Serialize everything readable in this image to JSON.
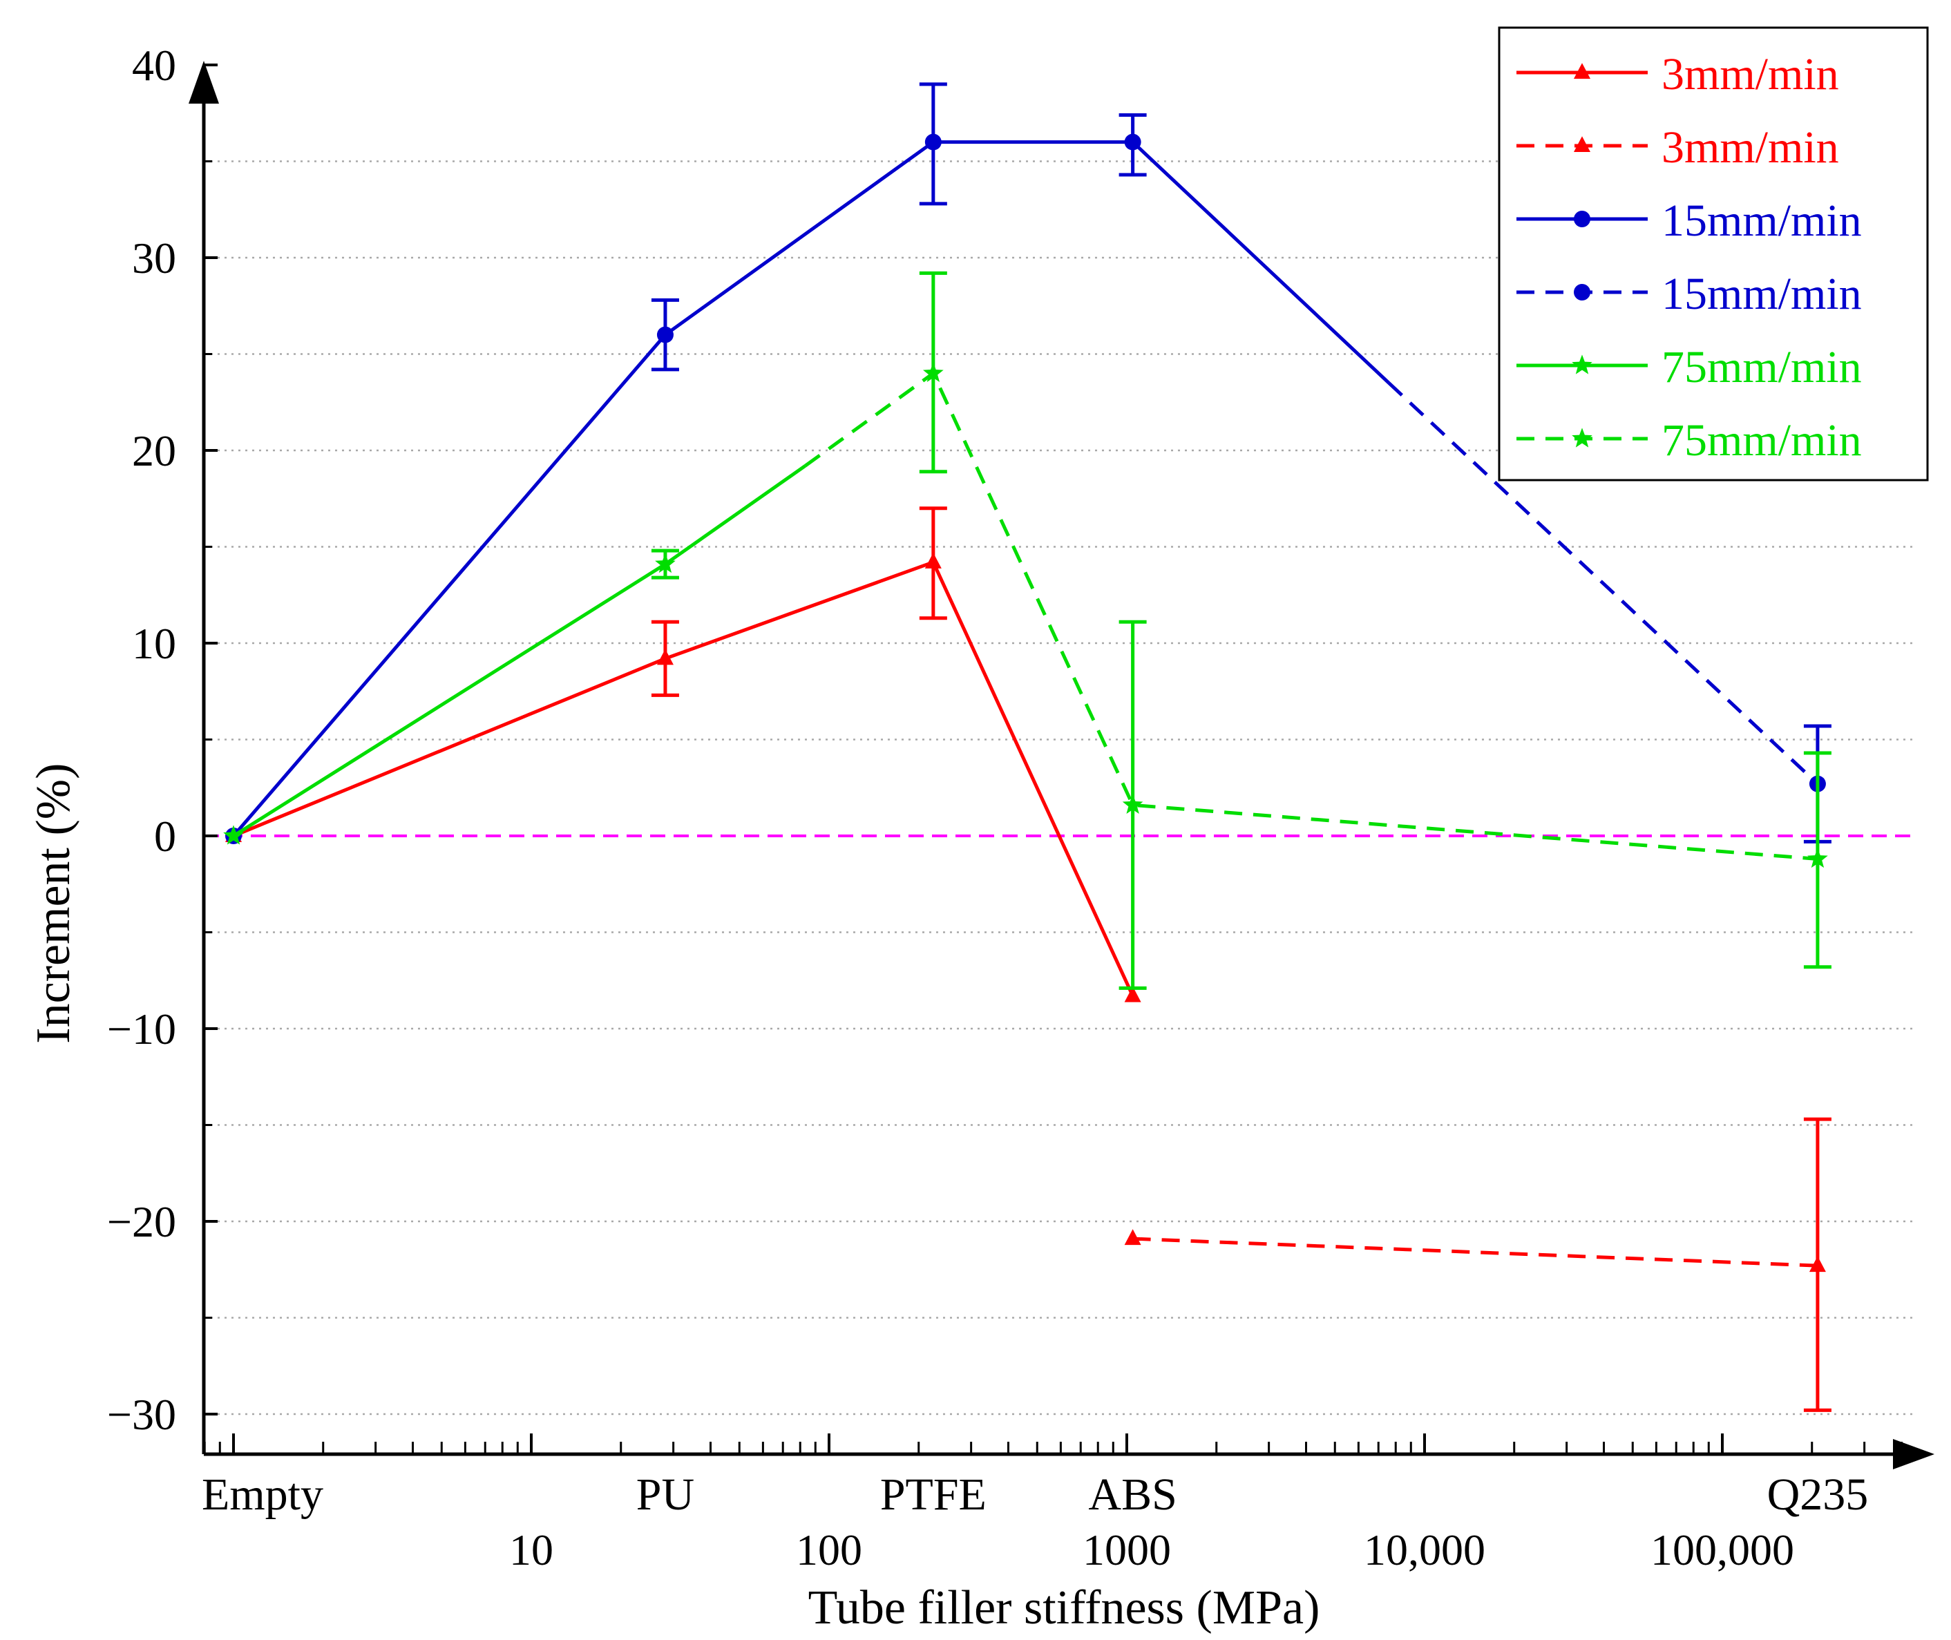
{
  "chart_data": {
    "type": "line",
    "xscale": "log",
    "xlabel": "Tube filler stiffness (MPa)",
    "ylabel": "Increment (%)",
    "ylim": [
      -33,
      40
    ],
    "xlim_log10": [
      -0.1,
      5.65
    ],
    "y_ticks": [
      -30,
      -20,
      -10,
      0,
      10,
      20,
      30,
      40
    ],
    "y_tick_labels": [
      "−30",
      "−20",
      "−10",
      "0",
      "10",
      "20",
      "30",
      "40"
    ],
    "x_decade_ticks": [
      {
        "label": "10",
        "log": 1
      },
      {
        "label": "100",
        "log": 2
      },
      {
        "label": "1000",
        "log": 3
      },
      {
        "label": "10,000",
        "log": 4
      },
      {
        "label": "100,000",
        "log": 5
      }
    ],
    "categories": [
      {
        "name": "Empty",
        "log": 0
      },
      {
        "name": "PU",
        "log": 1.45
      },
      {
        "name": "PTFE",
        "log": 2.35
      },
      {
        "name": "ABS",
        "log": 3.02
      },
      {
        "name": "Q235",
        "log": 5.32
      }
    ],
    "reference_line": {
      "y": 0,
      "color": "#ff00ff"
    },
    "series": [
      {
        "name": "3mm/min",
        "style": "solid",
        "marker": "triangle",
        "color": "#ff0000",
        "points": [
          {
            "x": "Empty",
            "y": 0
          },
          {
            "x": "PU",
            "y": 9.2,
            "err_lo": 7.3,
            "err_hi": 11.1
          },
          {
            "x": "PTFE",
            "y": 14.2,
            "err_lo": 11.3,
            "err_hi": 17.0
          },
          {
            "x": "ABS",
            "y": -8.3
          }
        ]
      },
      {
        "name": "3mm/min",
        "style": "dashed",
        "marker": "triangle",
        "color": "#ff0000",
        "points": [
          {
            "x": "ABS",
            "y": -20.9
          },
          {
            "x": "Q235",
            "y": -22.3,
            "err_lo": -29.8,
            "err_hi": -14.7
          }
        ]
      },
      {
        "name": "15mm/min",
        "style": "solid",
        "marker": "circle",
        "color": "#0000cc",
        "points": [
          {
            "x": "Empty",
            "y": 0
          },
          {
            "x": "PU",
            "y": 26.0,
            "err_lo": 24.2,
            "err_hi": 27.8
          },
          {
            "x": "PTFE",
            "y": 36.0,
            "err_lo": 32.8,
            "err_hi": 39.0
          },
          {
            "x": "ABS",
            "y": 36.0,
            "err_lo": 34.3,
            "err_hi": 37.4
          },
          {
            "x": "split",
            "log": 3.88,
            "y": 23.5
          }
        ]
      },
      {
        "name": "15mm/min",
        "style": "dashed",
        "marker": "circle",
        "color": "#0000cc",
        "points": [
          {
            "x": "split",
            "log": 3.88,
            "y": 23.5
          },
          {
            "x": "Q235",
            "y": 2.7,
            "err_lo": -0.3,
            "err_hi": 5.7
          }
        ]
      },
      {
        "name": "75mm/min",
        "style": "solid",
        "marker": "star",
        "color": "#00dd00",
        "points": [
          {
            "x": "Empty",
            "y": 0
          },
          {
            "x": "PU",
            "y": 14.1,
            "err_lo": 13.4,
            "err_hi": 14.8
          },
          {
            "x": "split",
            "log": 1.92,
            "y": 19.2
          }
        ]
      },
      {
        "name": "75mm/min",
        "style": "dashed",
        "marker": "star",
        "color": "#00dd00",
        "points": [
          {
            "x": "split",
            "log": 1.92,
            "y": 19.2
          },
          {
            "x": "PTFE",
            "y": 24.0,
            "err_lo": 18.9,
            "err_hi": 29.2
          },
          {
            "x": "ABS",
            "y": 1.6,
            "err_lo": -7.9,
            "err_hi": 11.1
          },
          {
            "x": "Q235",
            "y": -1.2,
            "err_lo": -6.8,
            "err_hi": 4.3
          }
        ]
      }
    ],
    "legend": {
      "position": "top-right",
      "entries": [
        {
          "label": "3mm/min",
          "color": "#ff0000",
          "style": "solid",
          "marker": "triangle"
        },
        {
          "label": "3mm/min",
          "color": "#ff0000",
          "style": "dashed",
          "marker": "triangle"
        },
        {
          "label": "15mm/min",
          "color": "#0000cc",
          "style": "solid",
          "marker": "circle"
        },
        {
          "label": "15mm/min",
          "color": "#0000cc",
          "style": "dashed",
          "marker": "circle"
        },
        {
          "label": "75mm/min",
          "color": "#00dd00",
          "style": "solid",
          "marker": "star"
        },
        {
          "label": "75mm/min",
          "color": "#00dd00",
          "style": "dashed",
          "marker": "star"
        }
      ]
    }
  }
}
